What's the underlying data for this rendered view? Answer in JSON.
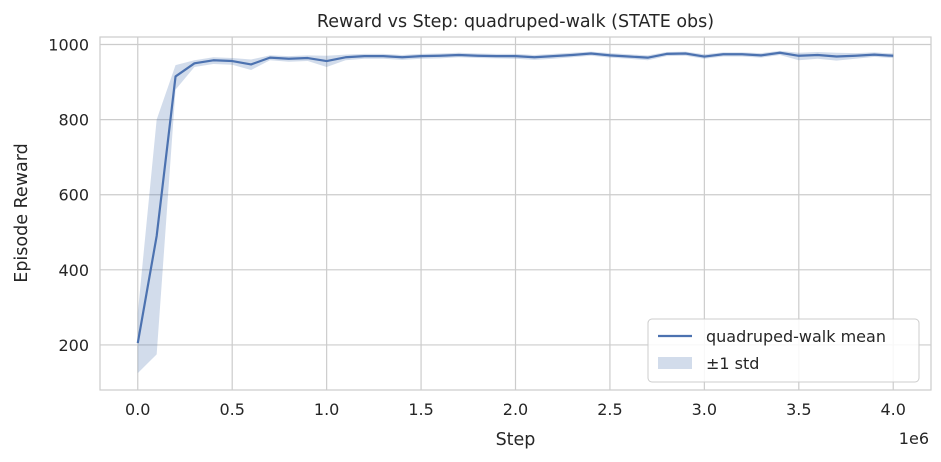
{
  "chart_data": {
    "type": "line",
    "title": "Reward vs Step: quadruped-walk (STATE obs)",
    "xlabel": "Step",
    "ylabel": "Episode Reward",
    "x_multiplier_label": "1e6",
    "xlim": [
      -200000,
      4200000
    ],
    "ylim": [
      80,
      1020
    ],
    "x_ticks": [
      0,
      500000,
      1000000,
      1500000,
      2000000,
      2500000,
      3000000,
      3500000,
      4000000
    ],
    "x_tick_labels": [
      "0.0",
      "0.5",
      "1.0",
      "1.5",
      "2.0",
      "2.5",
      "3.0",
      "3.5",
      "4.0"
    ],
    "y_ticks": [
      200,
      400,
      600,
      800,
      1000
    ],
    "y_tick_labels": [
      "200",
      "400",
      "600",
      "800",
      "1000"
    ],
    "grid": true,
    "legend_position": "lower-right",
    "series": [
      {
        "name": "quadruped-walk mean",
        "color": "#4c72b0",
        "x": [
          0,
          100000,
          200000,
          300000,
          400000,
          500000,
          600000,
          700000,
          800000,
          900000,
          1000000,
          1100000,
          1200000,
          1300000,
          1400000,
          1500000,
          1600000,
          1700000,
          1800000,
          1900000,
          2000000,
          2100000,
          2200000,
          2300000,
          2400000,
          2500000,
          2600000,
          2700000,
          2800000,
          2900000,
          3000000,
          3100000,
          3200000,
          3300000,
          3400000,
          3500000,
          3600000,
          3700000,
          3800000,
          3900000,
          4000000
        ],
        "values": [
          205,
          490,
          915,
          950,
          958,
          956,
          947,
          965,
          962,
          964,
          956,
          966,
          969,
          969,
          966,
          969,
          970,
          972,
          970,
          969,
          969,
          966,
          969,
          972,
          976,
          971,
          968,
          965,
          975,
          976,
          968,
          974,
          974,
          971,
          978,
          970,
          972,
          968,
          970,
          973,
          970
        ]
      }
    ],
    "band": {
      "name": "±1 std",
      "color": "#4c72b0",
      "opacity": 0.25,
      "lower": [
        125,
        175,
        880,
        940,
        948,
        946,
        932,
        958,
        954,
        956,
        940,
        958,
        962,
        962,
        959,
        962,
        963,
        966,
        964,
        963,
        962,
        959,
        962,
        966,
        970,
        965,
        962,
        958,
        969,
        970,
        962,
        968,
        968,
        965,
        972,
        958,
        962,
        957,
        962,
        967,
        964
      ],
      "upper": [
        285,
        800,
        945,
        958,
        966,
        964,
        960,
        971,
        969,
        971,
        970,
        973,
        975,
        975,
        972,
        975,
        976,
        978,
        976,
        975,
        975,
        972,
        975,
        978,
        981,
        977,
        974,
        971,
        980,
        981,
        974,
        979,
        979,
        977,
        983,
        978,
        980,
        978,
        977,
        979,
        976
      ]
    }
  }
}
